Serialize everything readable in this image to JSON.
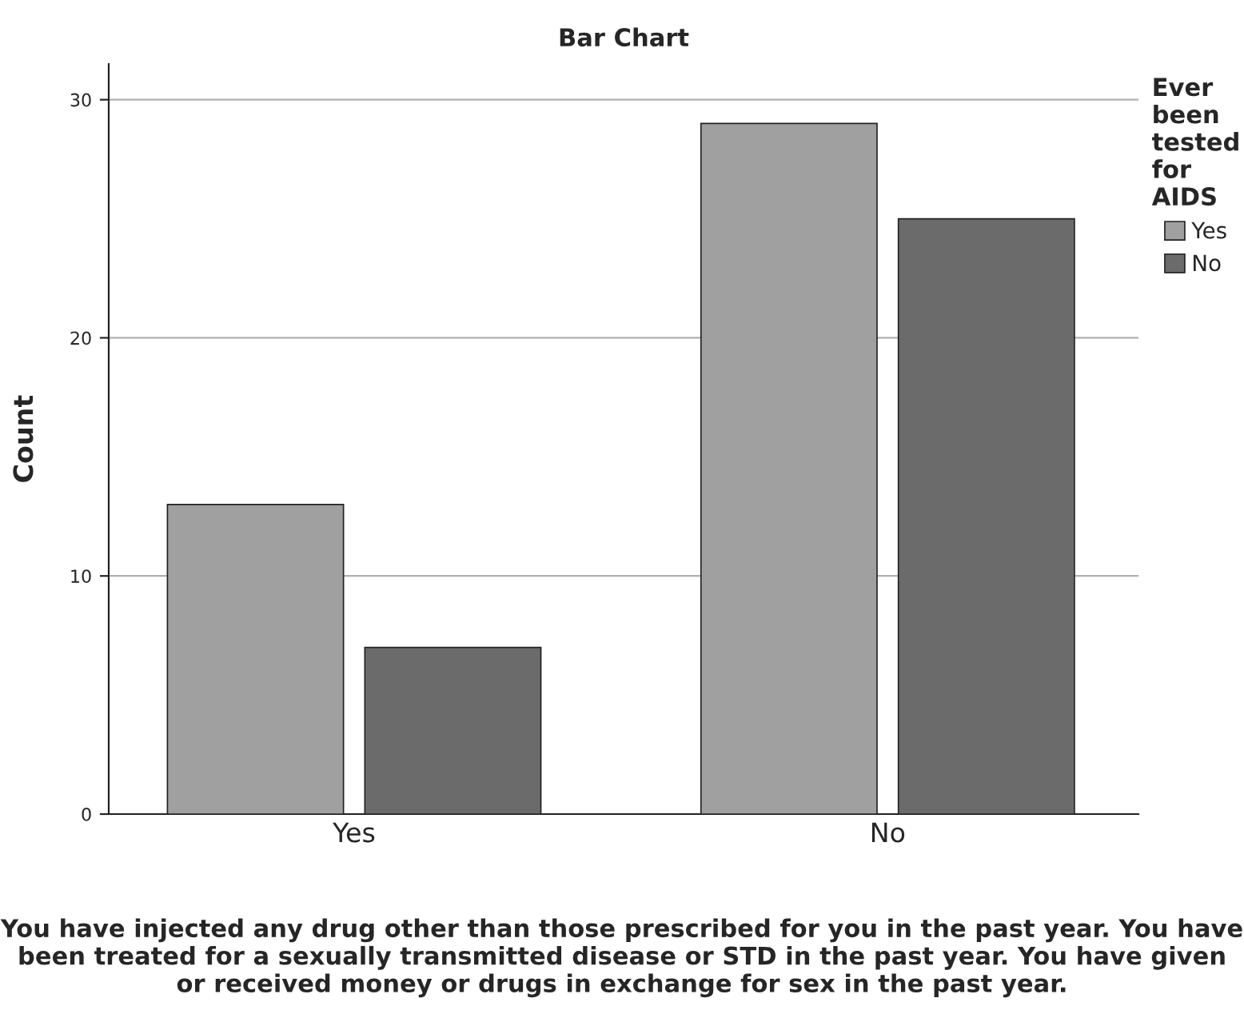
{
  "chart_data": {
    "type": "bar",
    "title": "Bar Chart",
    "xlabel": "You have injected any drug other than those prescribed for you in the past year. You have been treated for a sexually transmitted disease or STD in the past year. You have given or received money or drugs in exchange for sex in the past year.",
    "ylabel": "Count",
    "legend_title": "Ever been tested for AIDS",
    "categories": [
      "Yes",
      "No"
    ],
    "series": [
      {
        "name": "Yes",
        "color": "#a0a0a0",
        "values": [
          13,
          29
        ]
      },
      {
        "name": "No",
        "color": "#6b6b6b",
        "values": [
          7,
          25
        ]
      }
    ],
    "ylim": [
      0,
      31.5
    ],
    "yticks": [
      0,
      10,
      20,
      30
    ],
    "grid": "y",
    "legend": "right"
  }
}
